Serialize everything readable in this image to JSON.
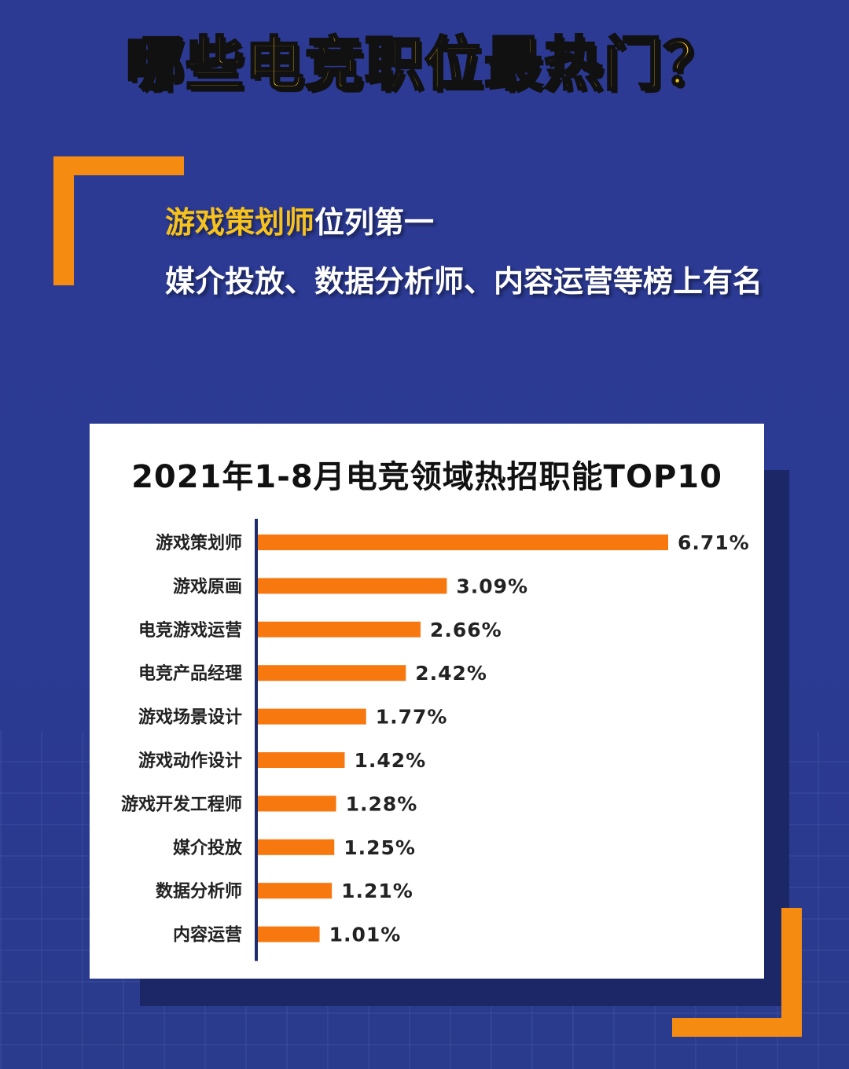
{
  "header": {
    "title": "哪些电竞职位最热门？"
  },
  "intro": {
    "highlight": "游戏策划师",
    "line1_rest": "位列第一",
    "line2": "媒介投放、数据分析师、内容运营等榜上有名"
  },
  "colors": {
    "background": "#2c3a94",
    "accent_orange": "#f68b12",
    "title_yellow": "#f7c21b",
    "bar": "#f6780f",
    "card": "#ffffff"
  },
  "chart_data": {
    "type": "bar",
    "orientation": "horizontal",
    "title": "2021年1-8月电竞领域热招职能TOP10",
    "categories": [
      "游戏策划师",
      "游戏原画",
      "电竞游戏运营",
      "电竞产品经理",
      "游戏场景设计",
      "游戏动作设计",
      "游戏开发工程师",
      "媒介投放",
      "数据分析师",
      "内容运营"
    ],
    "values": [
      6.71,
      3.09,
      2.66,
      2.42,
      1.77,
      1.42,
      1.28,
      1.25,
      1.21,
      1.01
    ],
    "data_labels": [
      "6.71%",
      "3.09%",
      "2.66%",
      "2.42%",
      "1.77%",
      "1.42%",
      "1.28%",
      "1.25%",
      "1.21%",
      "1.01%"
    ],
    "unit": "%",
    "xlabel": "",
    "ylabel": "",
    "xlim": [
      0,
      6.71
    ],
    "grid": false,
    "legend": "none"
  }
}
